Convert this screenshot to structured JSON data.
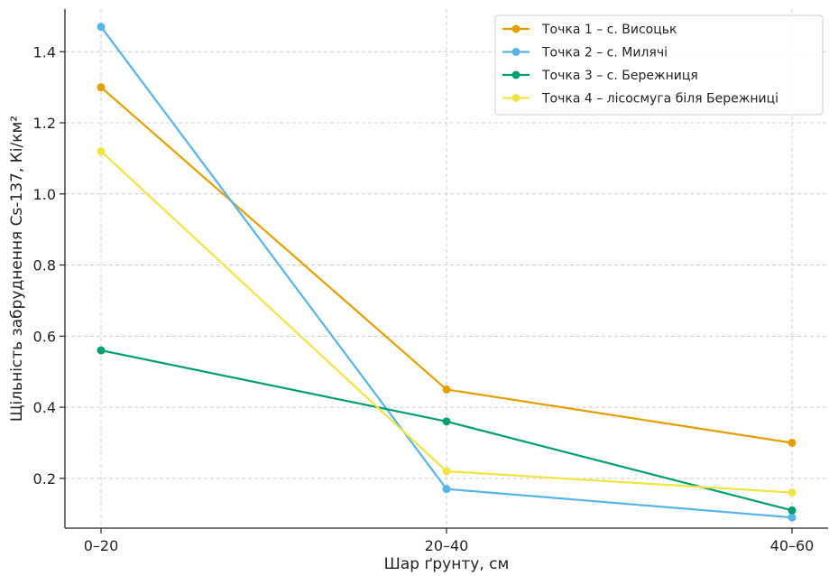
{
  "chart_data": {
    "type": "line",
    "xlabel": "Шар ґрунту, см",
    "ylabel": "Щільність забруднення Cs-137, Кі/км²",
    "categories": [
      "0–20",
      "20–40",
      "40–60"
    ],
    "yticks": [
      "0.2",
      "0.4",
      "0.6",
      "0.8",
      "1.0",
      "1.2",
      "1.4"
    ],
    "ylim": [
      0.06,
      1.52
    ],
    "grid": true,
    "legend_position": "top-right",
    "series": [
      {
        "name": "Точка 1 – с. Висоцьк",
        "color": "#E69F00",
        "values": [
          1.3,
          0.45,
          0.3
        ]
      },
      {
        "name": "Точка 2 – с. Милячі",
        "color": "#56B4E9",
        "values": [
          1.47,
          0.17,
          0.09
        ]
      },
      {
        "name": "Точка 3 – с. Бережниця",
        "color": "#009E73",
        "values": [
          0.56,
          0.36,
          0.11
        ]
      },
      {
        "name": "Точка 4 – лісосмуга біля Бережниці",
        "color": "#F0E442",
        "values": [
          1.12,
          0.22,
          0.16
        ]
      }
    ]
  }
}
